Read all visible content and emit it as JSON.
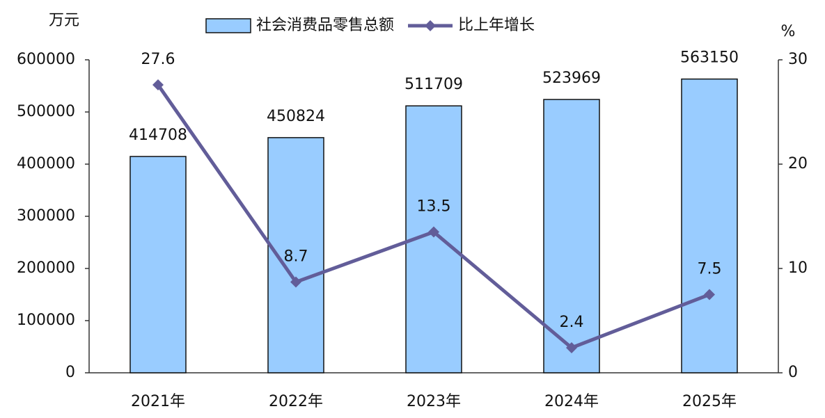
{
  "chart_data": {
    "type": "bar",
    "y_label": "万元",
    "y2_label": "%",
    "categories": [
      "2021年",
      "2022年",
      "2023年",
      "2024年",
      "2025年"
    ],
    "series": [
      {
        "name": "社会消费品零售总额",
        "type": "bar",
        "color": "#99ccff",
        "values": [
          414708,
          450824,
          511709,
          523969,
          563150
        ]
      },
      {
        "name": "比上年增长",
        "type": "line",
        "axis": "y2",
        "color": "#625d99",
        "values": [
          27.6,
          8.7,
          13.5,
          2.4,
          7.5
        ]
      }
    ],
    "ylim": [
      0,
      600000
    ],
    "yticks": [
      0,
      100000,
      200000,
      300000,
      400000,
      500000,
      600000
    ],
    "y2lim": [
      0,
      30
    ],
    "y2ticks": [
      0,
      10,
      20,
      30
    ]
  }
}
